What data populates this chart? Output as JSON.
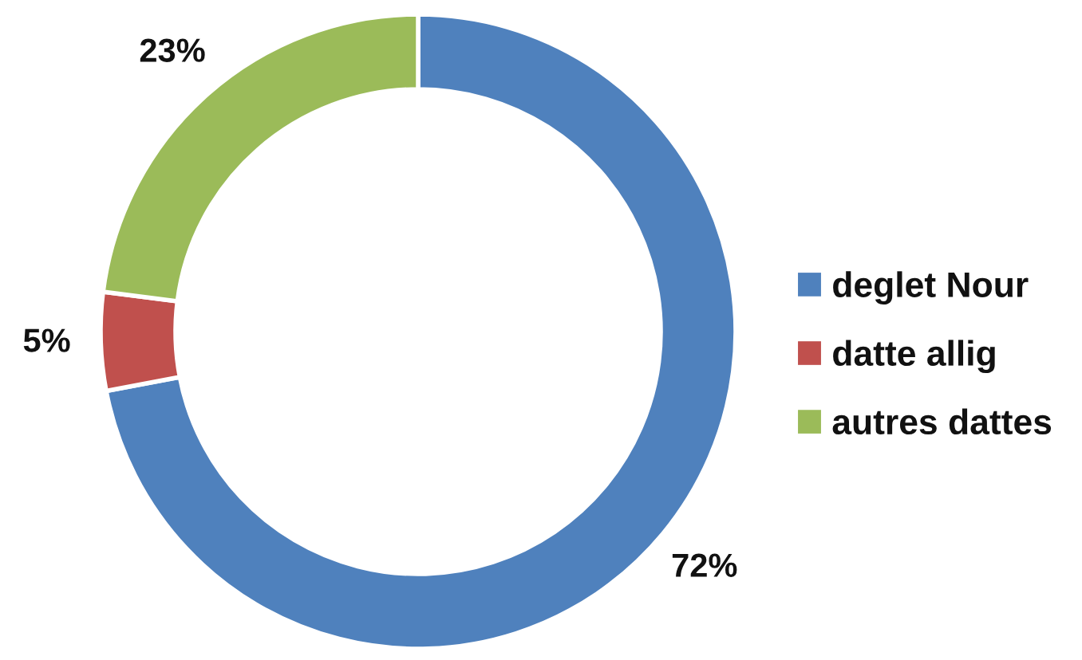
{
  "chart_data": {
    "type": "donut",
    "categories": [
      "deglet Nour",
      "datte allig",
      "autres dattes"
    ],
    "values": [
      72,
      5,
      23
    ],
    "colors": [
      "#4f81bd",
      "#c0504d",
      "#9bbb59"
    ],
    "value_labels": [
      "72%",
      "5%",
      "23%"
    ],
    "legend": "right"
  }
}
